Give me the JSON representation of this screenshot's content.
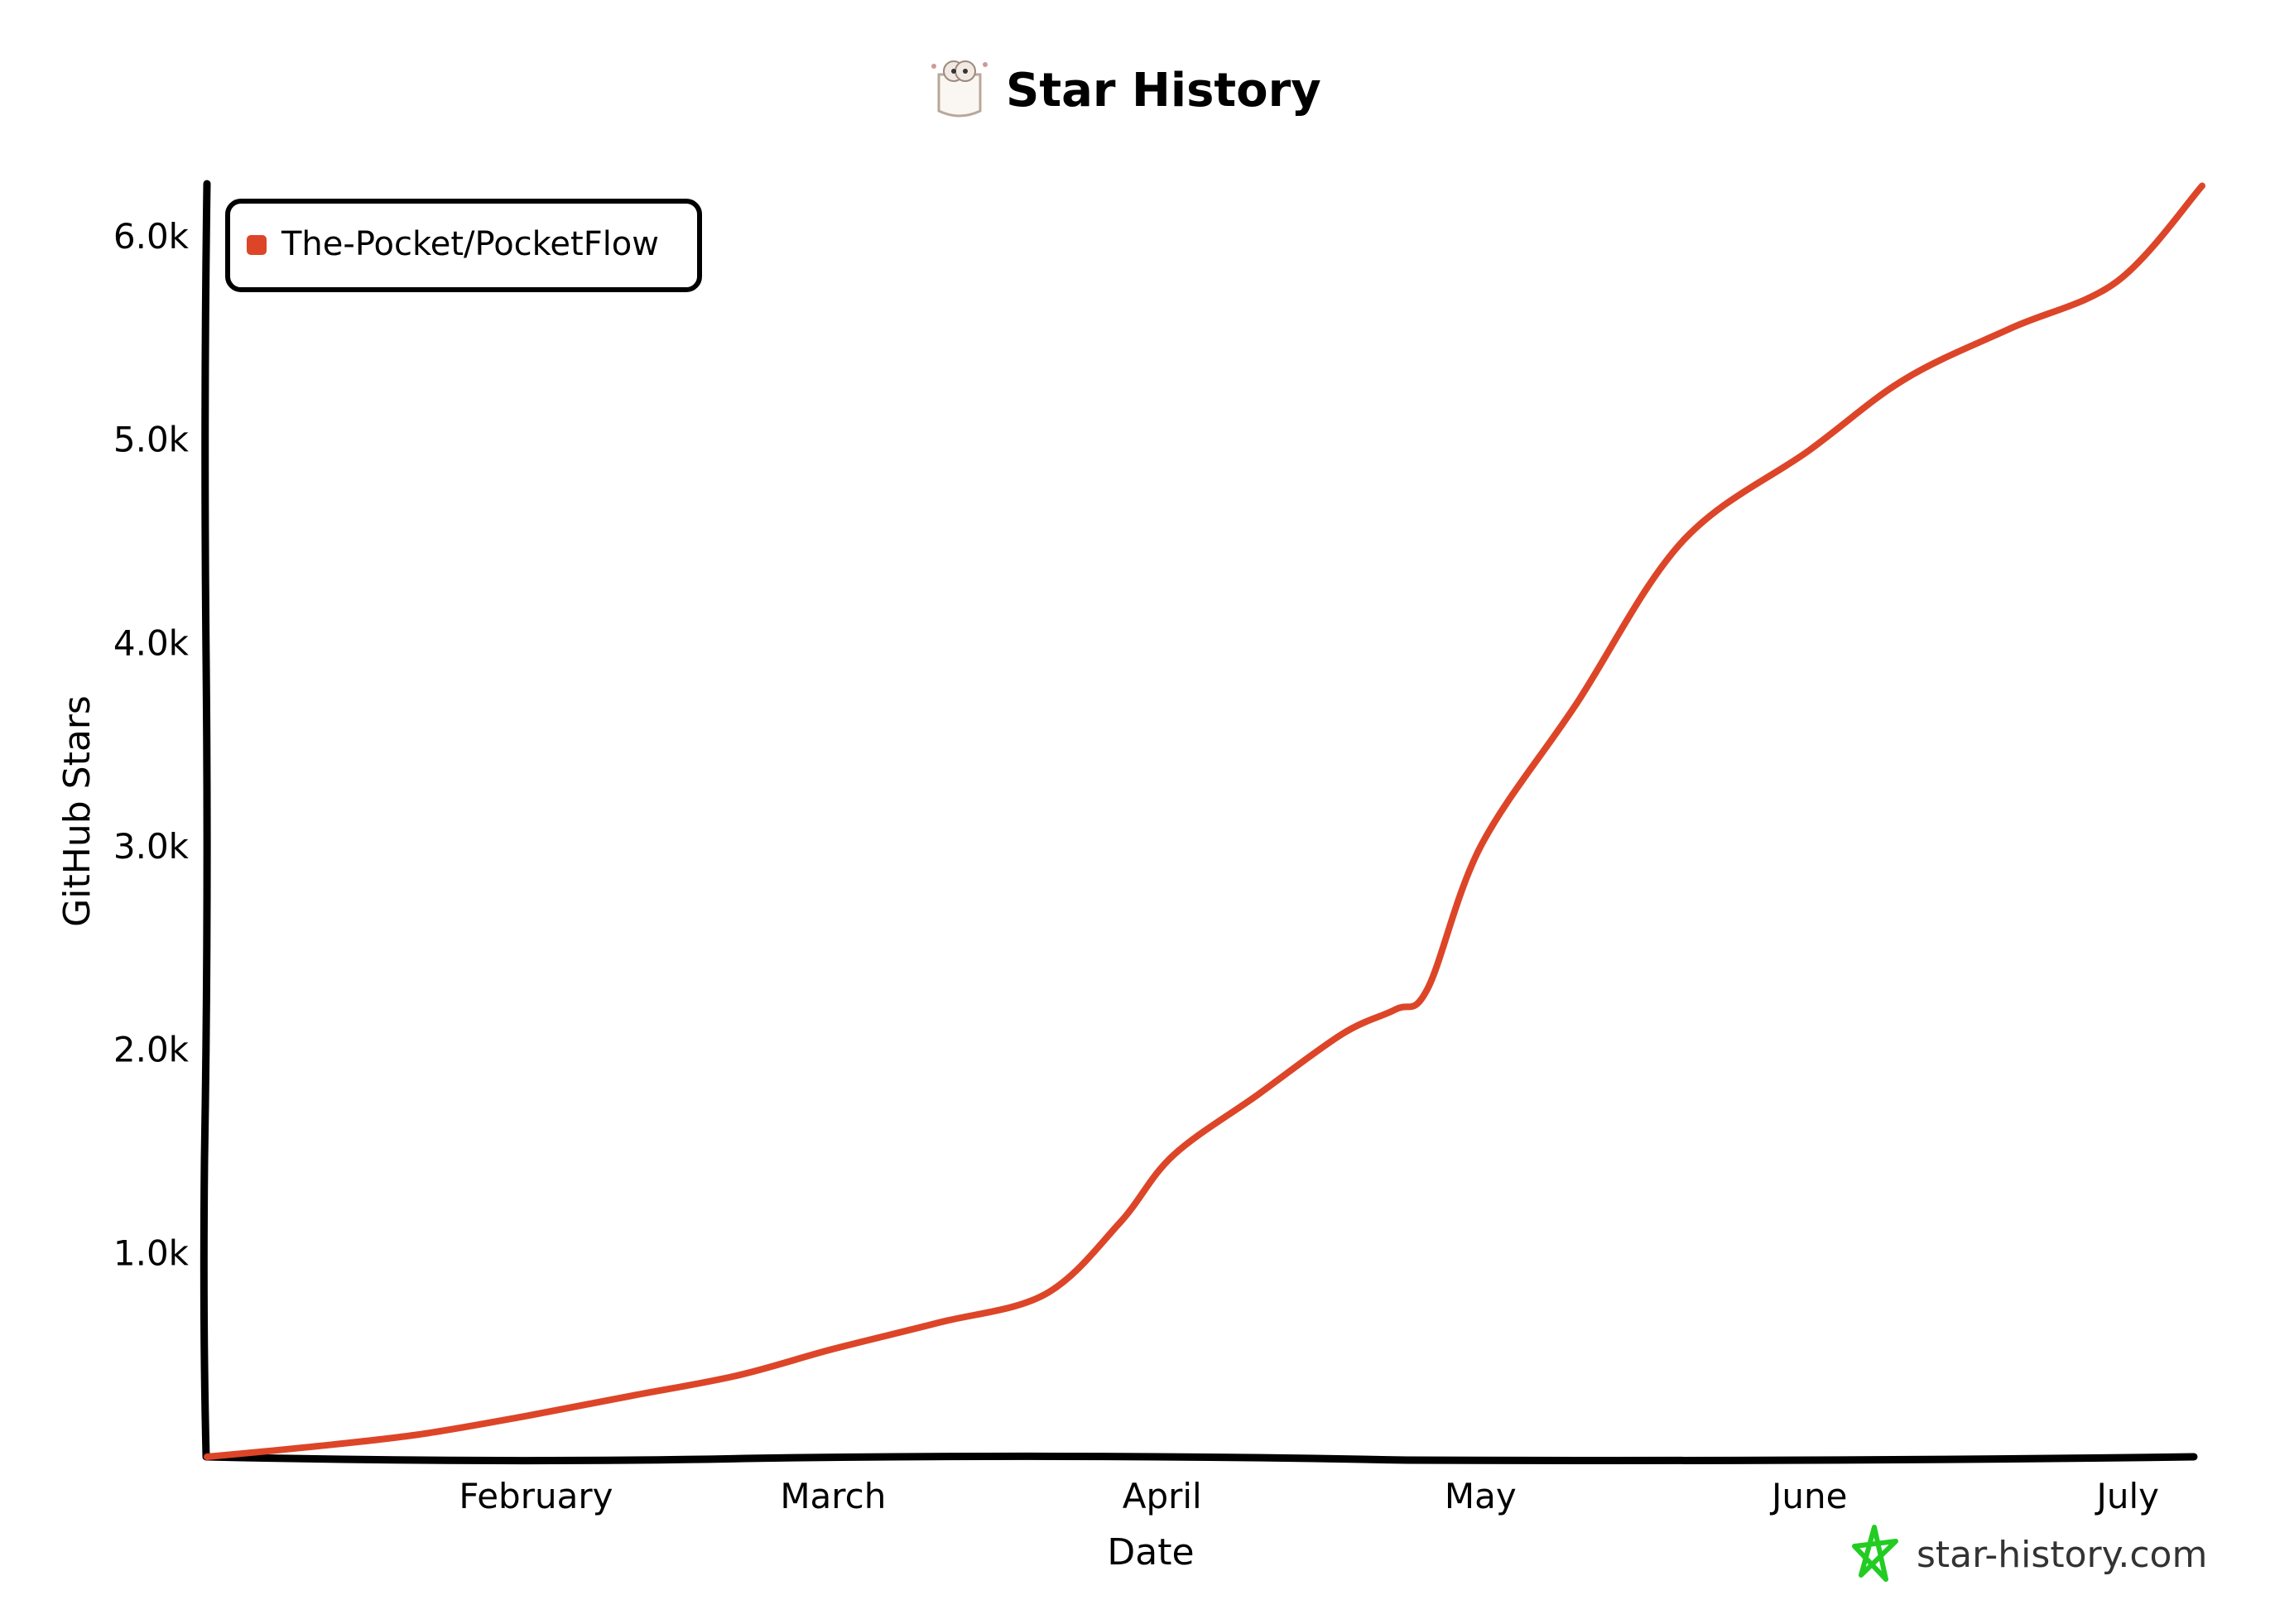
{
  "title": "Star History",
  "watermark": "star-history.com",
  "colors": {
    "series": "#dd4528",
    "axis": "#000000",
    "watermark_star": "#22cc22"
  },
  "chart_data": {
    "type": "line",
    "title": "Star History",
    "xlabel": "Date",
    "ylabel": "GitHub Stars",
    "x_ticks": [
      "February",
      "March",
      "April",
      "May",
      "June",
      "July"
    ],
    "y_ticks": [
      "1.0k",
      "2.0k",
      "3.0k",
      "4.0k",
      "5.0k",
      "6.0k"
    ],
    "ylim": [
      0,
      6260
    ],
    "legend_position": "top-left",
    "grid": false,
    "series": [
      {
        "name": "The-Pocket/PocketFlow",
        "x": [
          "2025-01-01",
          "2025-01-11",
          "2025-01-21",
          "2025-01-31",
          "2025-02-10",
          "2025-02-20",
          "2025-03-01",
          "2025-03-11",
          "2025-03-21",
          "2025-03-28",
          "2025-04-02",
          "2025-04-10",
          "2025-04-18",
          "2025-04-23",
          "2025-04-26",
          "2025-05-01",
          "2025-05-10",
          "2025-05-20",
          "2025-06-01",
          "2025-06-10",
          "2025-06-20",
          "2025-06-30",
          "2025-07-08"
        ],
        "values": [
          0,
          50,
          110,
          200,
          300,
          400,
          530,
          660,
          800,
          1150,
          1480,
          1780,
          2080,
          2200,
          2300,
          3000,
          3700,
          4500,
          4950,
          5300,
          5550,
          5780,
          6250
        ]
      }
    ]
  }
}
